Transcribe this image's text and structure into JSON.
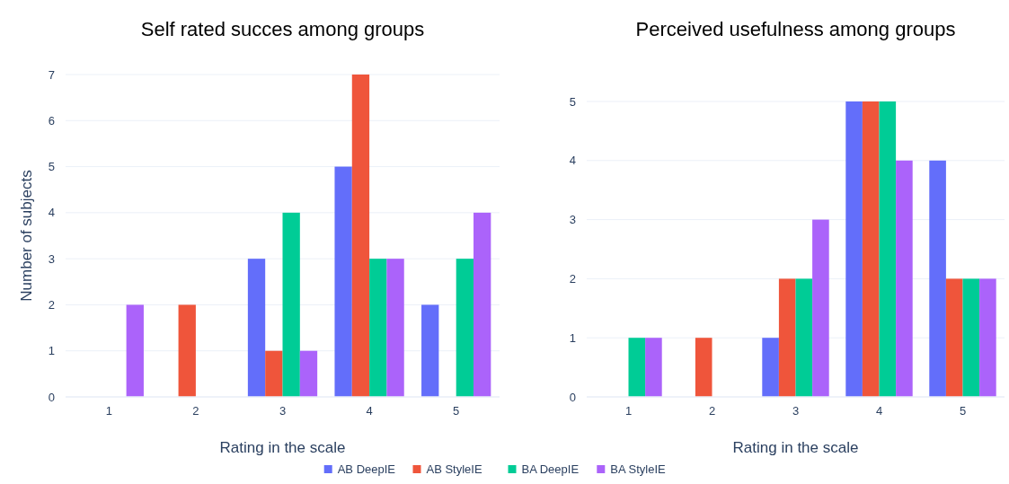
{
  "chart_data": [
    {
      "type": "bar",
      "title": "Self rated succes among groups",
      "xlabel": "Rating in the scale",
      "ylabel": "Number of subjects",
      "categories": [
        "1",
        "2",
        "3",
        "4",
        "5"
      ],
      "series": [
        {
          "name": "AB DeepIE",
          "color": "#636efa",
          "values": [
            0,
            0,
            3,
            5,
            2
          ]
        },
        {
          "name": "AB StyleIE",
          "color": "#ef553b",
          "values": [
            0,
            2,
            1,
            7,
            0
          ]
        },
        {
          "name": "BA DeepIE",
          "color": "#00cc96",
          "values": [
            0,
            0,
            4,
            3,
            3
          ]
        },
        {
          "name": "BA StyleIE",
          "color": "#ab63fa",
          "values": [
            2,
            0,
            1,
            3,
            4
          ]
        }
      ],
      "ylim": [
        0,
        7
      ],
      "yticks": [
        0,
        1,
        2,
        3,
        4,
        5,
        6,
        7
      ],
      "grid": "y",
      "legend": "bottom"
    },
    {
      "type": "bar",
      "title": "Perceived usefulness among groups",
      "xlabel": "Rating in the scale",
      "categories": [
        "1",
        "2",
        "3",
        "4",
        "5"
      ],
      "series": [
        {
          "color": "#636efa",
          "values": [
            0,
            0,
            1,
            5,
            4
          ]
        },
        {
          "color": "#ef553b",
          "values": [
            0,
            1,
            2,
            5,
            2
          ]
        },
        {
          "color": "#00cc96",
          "values": [
            1,
            0,
            2,
            5,
            2
          ]
        },
        {
          "color": "#ab63fa",
          "values": [
            1,
            0,
            3,
            4,
            2
          ]
        }
      ],
      "ylim": [
        0,
        5
      ],
      "yticks": [
        0,
        1,
        2,
        3,
        4,
        5
      ],
      "grid": "y"
    }
  ]
}
